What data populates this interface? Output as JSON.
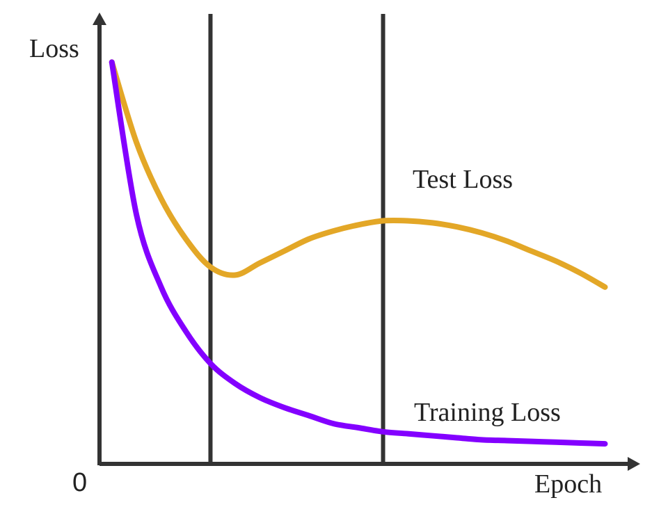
{
  "chart_data": {
    "type": "line",
    "title": "",
    "xlabel": "Epoch",
    "ylabel": "Loss",
    "origin_label": "0",
    "grid": false,
    "legend": "none",
    "colors": {
      "axis": "#333333",
      "test": "#e3a727",
      "training": "#8300ff"
    },
    "x": [
      0,
      1,
      2,
      3,
      4,
      5,
      6,
      7,
      8,
      9,
      10,
      11,
      12,
      13,
      14,
      15,
      16,
      17,
      18,
      19,
      20
    ],
    "series": [
      {
        "name": "Test Loss",
        "values": [
          1.0,
          0.8,
          0.66,
          0.56,
          0.49,
          0.47,
          0.5,
          0.53,
          0.56,
          0.58,
          0.595,
          0.605,
          0.605,
          0.6,
          0.59,
          0.575,
          0.555,
          0.53,
          0.505,
          0.475,
          0.44
        ]
      },
      {
        "name": "Training Loss",
        "values": [
          1.0,
          0.62,
          0.44,
          0.33,
          0.25,
          0.2,
          0.165,
          0.14,
          0.12,
          0.1,
          0.09,
          0.08,
          0.075,
          0.07,
          0.065,
          0.06,
          0.058,
          0.056,
          0.054,
          0.052,
          0.05
        ]
      }
    ],
    "vlines": [
      4,
      11
    ],
    "xlim": [
      -0.5,
      21.2
    ],
    "ylim": [
      0,
      1.12
    ]
  }
}
